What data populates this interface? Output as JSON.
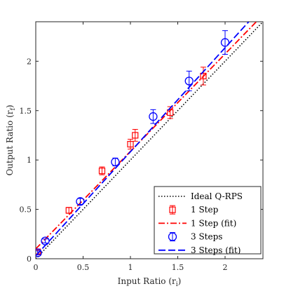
{
  "chart_data": {
    "type": "scatter",
    "xlabel": "Input Ratio (r",
    "xlabel_sub": "i",
    "xlabel_close": ")",
    "ylabel": "Output Ratio (r",
    "ylabel_sub": "f",
    "ylabel_close": ")",
    "xlim": [
      0,
      2.4
    ],
    "ylim": [
      0,
      2.4
    ],
    "xticks": [
      0,
      0.5,
      1,
      1.5,
      2
    ],
    "xtick_labels": [
      "0",
      "0.5",
      "1",
      "1.5",
      "2"
    ],
    "yticks": [
      0,
      0.5,
      1,
      1.5,
      2
    ],
    "ytick_labels": [
      "0",
      "0.5",
      "1",
      "1.5",
      "2"
    ],
    "grid": false,
    "legend_position": "bottom-right",
    "series": [
      {
        "name": "Ideal Q-RPS",
        "kind": "line",
        "style": "dotted",
        "color": "#000000",
        "x": [
          0,
          2.4
        ],
        "y": [
          0,
          2.4
        ]
      },
      {
        "name": "1 Step",
        "kind": "markers",
        "marker": "square",
        "color": "#ff0000",
        "x": [
          0.02,
          0.35,
          0.7,
          1.0,
          1.05,
          1.42,
          1.77
        ],
        "y": [
          0.07,
          0.49,
          0.89,
          1.16,
          1.25,
          1.48,
          1.85
        ],
        "err": [
          0.02,
          0.03,
          0.04,
          0.05,
          0.06,
          0.06,
          0.09
        ]
      },
      {
        "name": "1 Step (fit)",
        "kind": "line",
        "style": "dashdot",
        "color": "#ff0000",
        "x": [
          0,
          2.33
        ],
        "y": [
          0.1,
          2.4
        ]
      },
      {
        "name": "3 Steps",
        "kind": "markers",
        "marker": "circle",
        "color": "#0000ff",
        "x": [
          0.02,
          0.1,
          0.47,
          0.84,
          1.24,
          1.62,
          2.0
        ],
        "y": [
          0.06,
          0.18,
          0.58,
          0.98,
          1.44,
          1.8,
          2.19
        ],
        "err": [
          0.02,
          0.02,
          0.03,
          0.04,
          0.07,
          0.1,
          0.12
        ]
      },
      {
        "name": "3 Steps (fit)",
        "kind": "line",
        "style": "dashed",
        "color": "#0000ff",
        "x": [
          0,
          2.25
        ],
        "y": [
          0.03,
          2.4
        ]
      }
    ]
  }
}
